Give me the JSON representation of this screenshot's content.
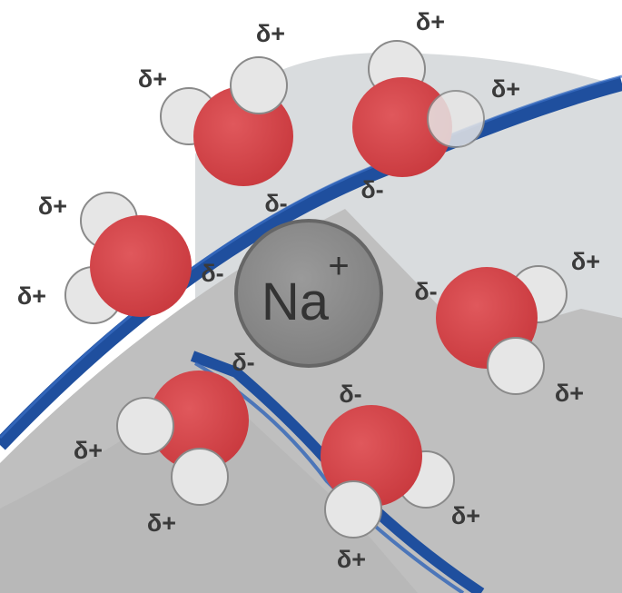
{
  "ion": {
    "symbol": "Na",
    "charge": "+"
  },
  "labels": {
    "delta_plus": "δ+",
    "delta_minus": "δ-"
  },
  "colors": {
    "oxygen": "#d9464b",
    "hydrogen": "#e6e6e6",
    "ion": "#8a8a8a",
    "ribbon": "#1f4f9e",
    "background_light": "#d7dadc",
    "background_dark": "#bdbdbd"
  }
}
